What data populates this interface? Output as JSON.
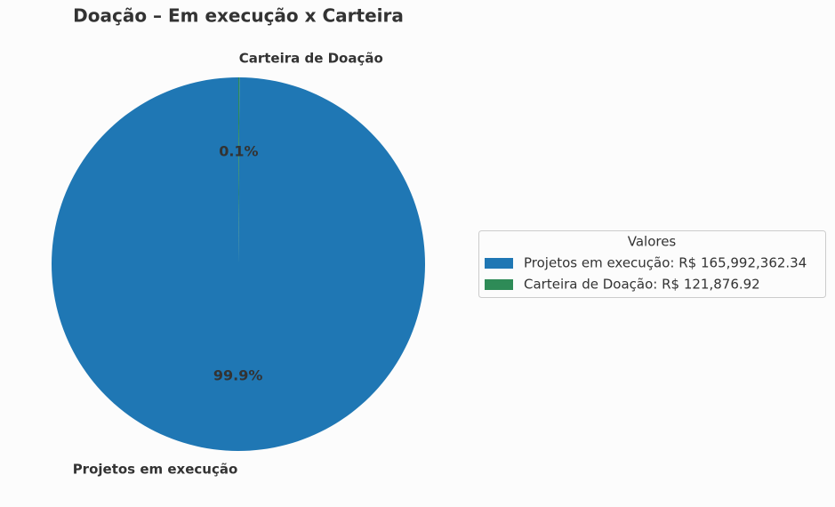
{
  "chart_data": {
    "type": "pie",
    "title": "Doação – Em execução x Carteira",
    "categories": [
      "Projetos em execução",
      "Carteira de Doação"
    ],
    "values": [
      99.9,
      0.1
    ],
    "value_labels": [
      "99.9%",
      "0.1%"
    ],
    "colors": [
      "#1f77b4",
      "#2e8b57"
    ],
    "start_angle": 90,
    "legend": {
      "title": "Valores",
      "position": "right",
      "entries": [
        "Projetos em execução: R$ 165,992,362.34",
        "Carteira de Doação: R$ 121,876.92"
      ]
    }
  }
}
